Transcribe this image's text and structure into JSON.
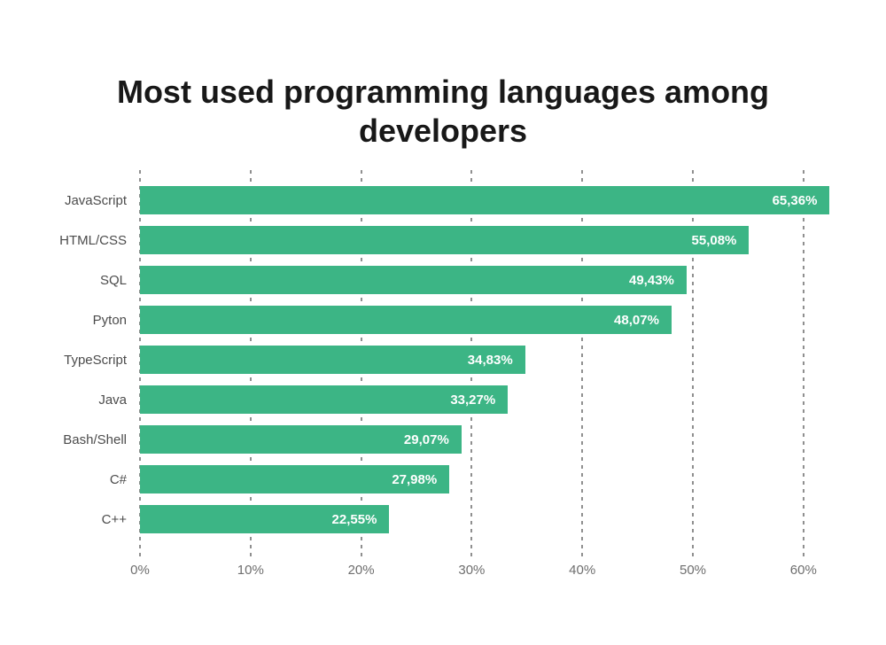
{
  "title": "Most used programming languages among developers",
  "chart_data": {
    "type": "bar",
    "orientation": "horizontal",
    "title": "Most used programming languages among developers",
    "categories": [
      "JavaScript",
      "HTML/CSS",
      "SQL",
      "Pyton",
      "TypeScript",
      "Java",
      "Bash/Shell",
      "C#",
      "C++"
    ],
    "values": [
      65.36,
      55.08,
      49.43,
      48.07,
      34.83,
      33.27,
      29.07,
      27.98,
      22.55
    ],
    "value_labels": [
      "65,36%",
      "55,08%",
      "49,43%",
      "48,07%",
      "34,83%",
      "33,27%",
      "29,07%",
      "27,98%",
      "22,55%"
    ],
    "xlabel": "",
    "ylabel": "",
    "x_tick_labels": [
      "0%",
      "10%",
      "20%",
      "30%",
      "40%",
      "50%",
      "60%"
    ],
    "x_tick_values": [
      0,
      10,
      20,
      30,
      40,
      50,
      60
    ],
    "xlim": [
      0,
      62.5
    ],
    "grid": "vertical-dashed",
    "legend": "none",
    "bar_color": "#3CB585",
    "value_label_color": "#FFFFFF",
    "category_label_color": "#4C4C4C",
    "tick_label_color": "#6E6E6E",
    "gridline_color": "#8F8F8F",
    "background_color": "#FFFFFF",
    "title_color": "#181818"
  }
}
